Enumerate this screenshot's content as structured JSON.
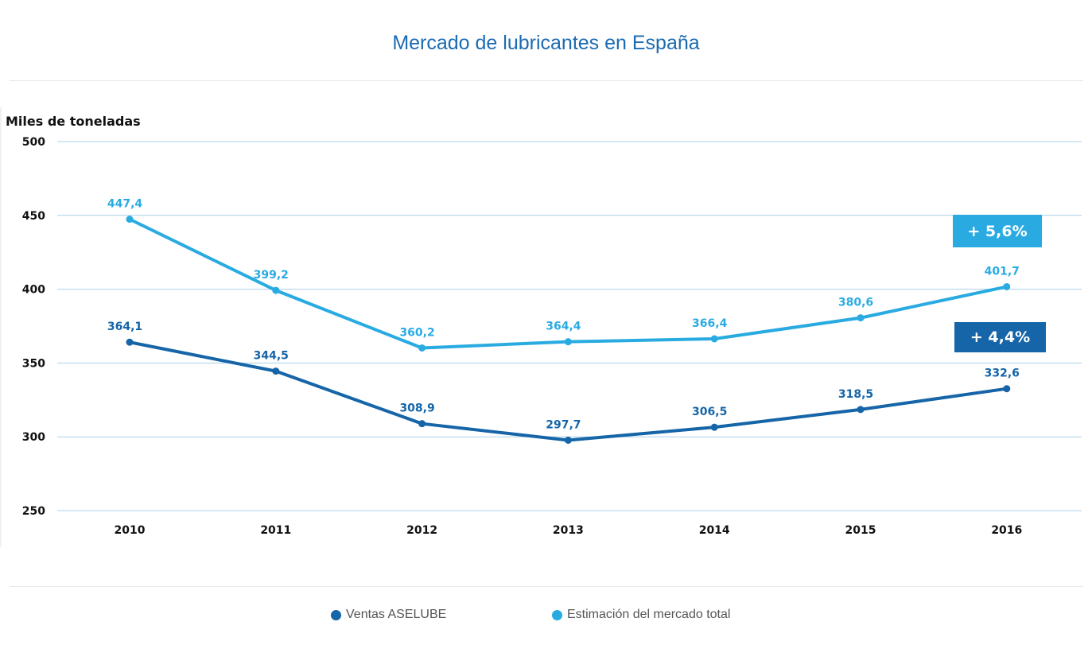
{
  "chart_data": {
    "type": "line",
    "title": "Mercado de lubricantes en España",
    "ylabel": "Miles de toneladas",
    "xlabel": "",
    "ylim": [
      250,
      500
    ],
    "yticks": [
      500,
      450,
      400,
      350,
      300,
      250
    ],
    "categories": [
      "2010",
      "2011",
      "2012",
      "2013",
      "2014",
      "2015",
      "2016"
    ],
    "grid": true,
    "legend_position": "bottom",
    "series": [
      {
        "name": "Ventas ASELUBE",
        "color": "#1565a8",
        "values": [
          364.1,
          344.5,
          308.9,
          297.7,
          306.5,
          318.5,
          332.6
        ],
        "labels": [
          "364,1",
          "344,5",
          "308,9",
          "297,7",
          "306,5",
          "318,5",
          "332,6"
        ],
        "badge": "+ 4,4%"
      },
      {
        "name": "Estimación del mercado total",
        "color": "#29abe2",
        "values": [
          447.4,
          399.2,
          360.2,
          364.4,
          366.4,
          380.6,
          401.7
        ],
        "labels": [
          "447,4",
          "399,2",
          "360,2",
          "364,4",
          "366,4",
          "380,6",
          "401,7"
        ],
        "badge": "+ 5,6%"
      }
    ]
  }
}
